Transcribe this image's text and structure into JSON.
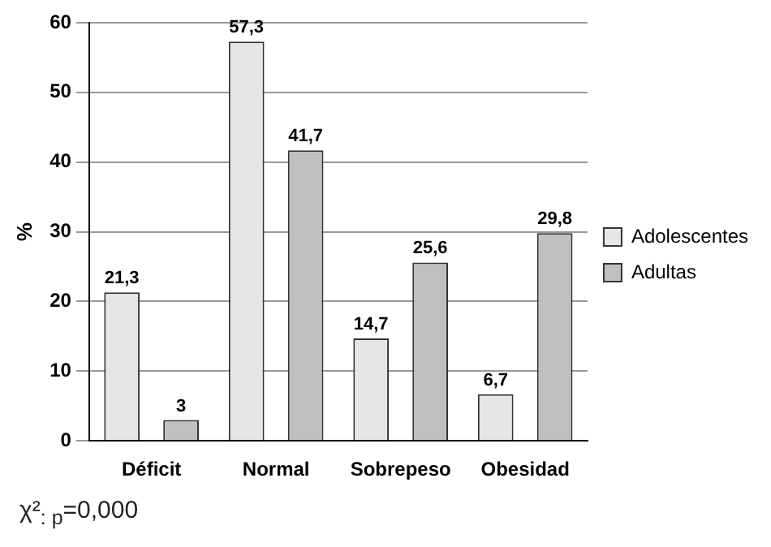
{
  "chart_data": {
    "type": "bar",
    "ylabel": "%",
    "categories": [
      "Déficit",
      "Normal",
      "Sobrepeso",
      "Obesidad"
    ],
    "series": [
      {
        "name": "Adolescentes",
        "color": "#e6e6e6",
        "values": [
          21.3,
          57.3,
          14.7,
          6.7
        ],
        "value_labels": [
          "21,3",
          "57,3",
          "14,7",
          "6,7"
        ]
      },
      {
        "name": "Adultas",
        "color": "#c0c0c0",
        "values": [
          3,
          41.7,
          25.6,
          29.8
        ],
        "value_labels": [
          "3",
          "41,7",
          "25,6",
          "29,8"
        ]
      }
    ],
    "ylim": [
      0,
      60
    ],
    "yticks": [
      0,
      10,
      20,
      30,
      40,
      50,
      60
    ],
    "grid": "y",
    "legend": "right",
    "annotations": [
      "χ²$_{: p}$=0,000"
    ]
  }
}
